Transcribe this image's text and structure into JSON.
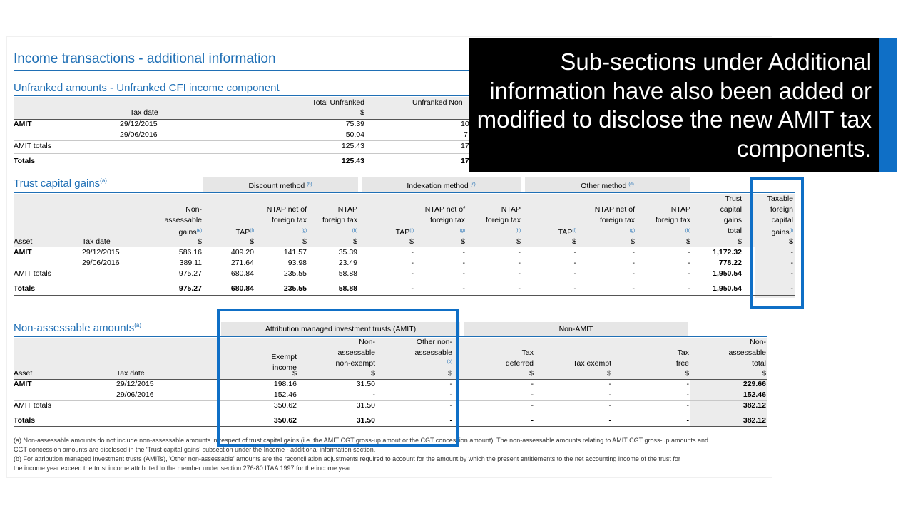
{
  "doc_title": "Income transactions - additional information",
  "unfranked": {
    "title": "Unfranked amounts - Unfranked CFI income component",
    "headers": [
      "Total Unfranked",
      "Unfranked Non"
    ],
    "currency": "$",
    "tax_date_label": "Tax date",
    "rows": [
      {
        "label": "AMIT",
        "date": "29/12/2015",
        "total": "75.39",
        "non": "10"
      },
      {
        "label": "",
        "date": "29/06/2016",
        "total": "50.04",
        "non": "7"
      },
      {
        "label": "AMIT  totals",
        "date": "",
        "total": "125.43",
        "non": "17"
      },
      {
        "label": "Totals",
        "date": "",
        "total": "125.43",
        "non": "17"
      }
    ]
  },
  "tcg": {
    "title": "Trust capital gains",
    "title_note": "(a)",
    "groups": [
      {
        "label": "Discount method",
        "note": "(b)"
      },
      {
        "label": "Indexation method",
        "note": "(c)"
      },
      {
        "label": "Other method",
        "note": "(d)"
      }
    ],
    "col_asset": "Asset",
    "col_date": "Tax date",
    "col_non_l1": "Non-",
    "col_non_l2": "assessable",
    "col_non_l3": "gains",
    "col_non_note": "(e)",
    "col_tap": "TAP",
    "col_tap_note": "(f)",
    "col_ntapnet_l1": "NTAP net of",
    "col_ntapnet_l2": "foreign tax",
    "col_ntapnet_note": "(g)",
    "col_ntap_l1": "NTAP",
    "col_ntap_l2": "foreign tax",
    "col_ntap_note": "(h)",
    "col_total_l1": "Trust",
    "col_total_l2": "capital",
    "col_total_l3": "gains",
    "col_total_l4": "total",
    "col_tax_l1": "Taxable",
    "col_tax_l2": "foreign",
    "col_tax_l3": "capital",
    "col_tax_l4": "gains",
    "col_tax_note": "(i)",
    "currency": "$",
    "rows": [
      {
        "label": "AMIT",
        "date": "29/12/2015",
        "non": "586.16",
        "tap": "409.20",
        "ntapnet": "141.57",
        "ntap": "35.39",
        "i1": "-",
        "i2": "-",
        "i3": "-",
        "o1": "-",
        "o2": "-",
        "o3": "-",
        "total": "1,172.32",
        "tax": "-"
      },
      {
        "label": "",
        "date": "29/06/2016",
        "non": "389.11",
        "tap": "271.64",
        "ntapnet": "93.98",
        "ntap": "23.49",
        "i1": "-",
        "i2": "-",
        "i3": "-",
        "o1": "-",
        "o2": "-",
        "o3": "-",
        "total": "778.22",
        "tax": "-"
      },
      {
        "label": "AMIT  totals",
        "date": "",
        "non": "975.27",
        "tap": "680.84",
        "ntapnet": "235.55",
        "ntap": "58.88",
        "i1": "-",
        "i2": "-",
        "i3": "-",
        "o1": "-",
        "o2": "-",
        "o3": "-",
        "total": "1,950.54",
        "tax": "-"
      },
      {
        "label": "Totals",
        "date": "",
        "non": "975.27",
        "tap": "680.84",
        "ntapnet": "235.55",
        "ntap": "58.88",
        "i1": "-",
        "i2": "-",
        "i3": "-",
        "o1": "-",
        "o2": "-",
        "o3": "-",
        "total": "1,950.54",
        "tax": "-"
      }
    ]
  },
  "nonass": {
    "title": "Non-assessable amounts",
    "title_note": "(a)",
    "group_amit": "Attribution managed investment trusts (AMIT)",
    "group_non": "Non-AMIT",
    "col_asset": "Asset",
    "col_date": "Tax date",
    "col_exempt_l1": "Exempt",
    "col_exempt_l2": "income",
    "col_nonex_l1": "Non-",
    "col_nonex_l2": "assessable",
    "col_nonex_l3": "non-exempt",
    "col_other_l1": "Other non-",
    "col_other_l2": "assessable",
    "col_other_note": "(b)",
    "col_def_l1": "Tax",
    "col_def_l2": "deferred",
    "col_taxex": "Tax exempt",
    "col_free_l1": "Tax",
    "col_free_l2": "free",
    "col_total_l1": "Non-",
    "col_total_l2": "assessable",
    "col_total_l3": "total",
    "currency": "$",
    "rows": [
      {
        "label": "AMIT",
        "date": "29/12/2015",
        "exempt": "198.16",
        "nonex": "31.50",
        "other": "-",
        "def": "-",
        "taxex": "-",
        "free": "-",
        "total": "229.66"
      },
      {
        "label": "",
        "date": "29/06/2016",
        "exempt": "152.46",
        "nonex": "-",
        "other": "-",
        "def": "-",
        "taxex": "-",
        "free": "-",
        "total": "152.46"
      },
      {
        "label": "AMIT  totals",
        "date": "",
        "exempt": "350.62",
        "nonex": "31.50",
        "other": "-",
        "def": "-",
        "taxex": "-",
        "free": "-",
        "total": "382.12"
      },
      {
        "label": "Totals",
        "date": "",
        "exempt": "350.62",
        "nonex": "31.50",
        "other": "-",
        "def": "-",
        "taxex": "-",
        "free": "-",
        "total": "382.12"
      }
    ]
  },
  "footnotes": {
    "a_line1": "(a) Non-assessable amounts do not include non-assessable amounts in respect of trust capital gains (i.e. the AMIT CGT gross-up amout or the CGT concession amount). The non-assessable amounts relating to AMIT CGT gross-up amounts and",
    "a_line2": "CGT concession amounts are disclosed in the 'Trust capital gains' subsection under the Income - additional information section.",
    "b_line1": "(b) For attribution managed investment trusts (AMITs), 'Other non-assessable' amounts are the reconciliation adjustments required to account for the amount by which the present entitlements to the net accounting income of the trust for",
    "b_line2": "the income year exceed the trust income attributed to the member under section 276-80 ITAA 1997 for the income year."
  },
  "callout": {
    "part1": "Sub-sections under ",
    "part2_strong": "Additional information",
    "part3": " have also been added or modified to disclose the new AMIT tax components."
  }
}
